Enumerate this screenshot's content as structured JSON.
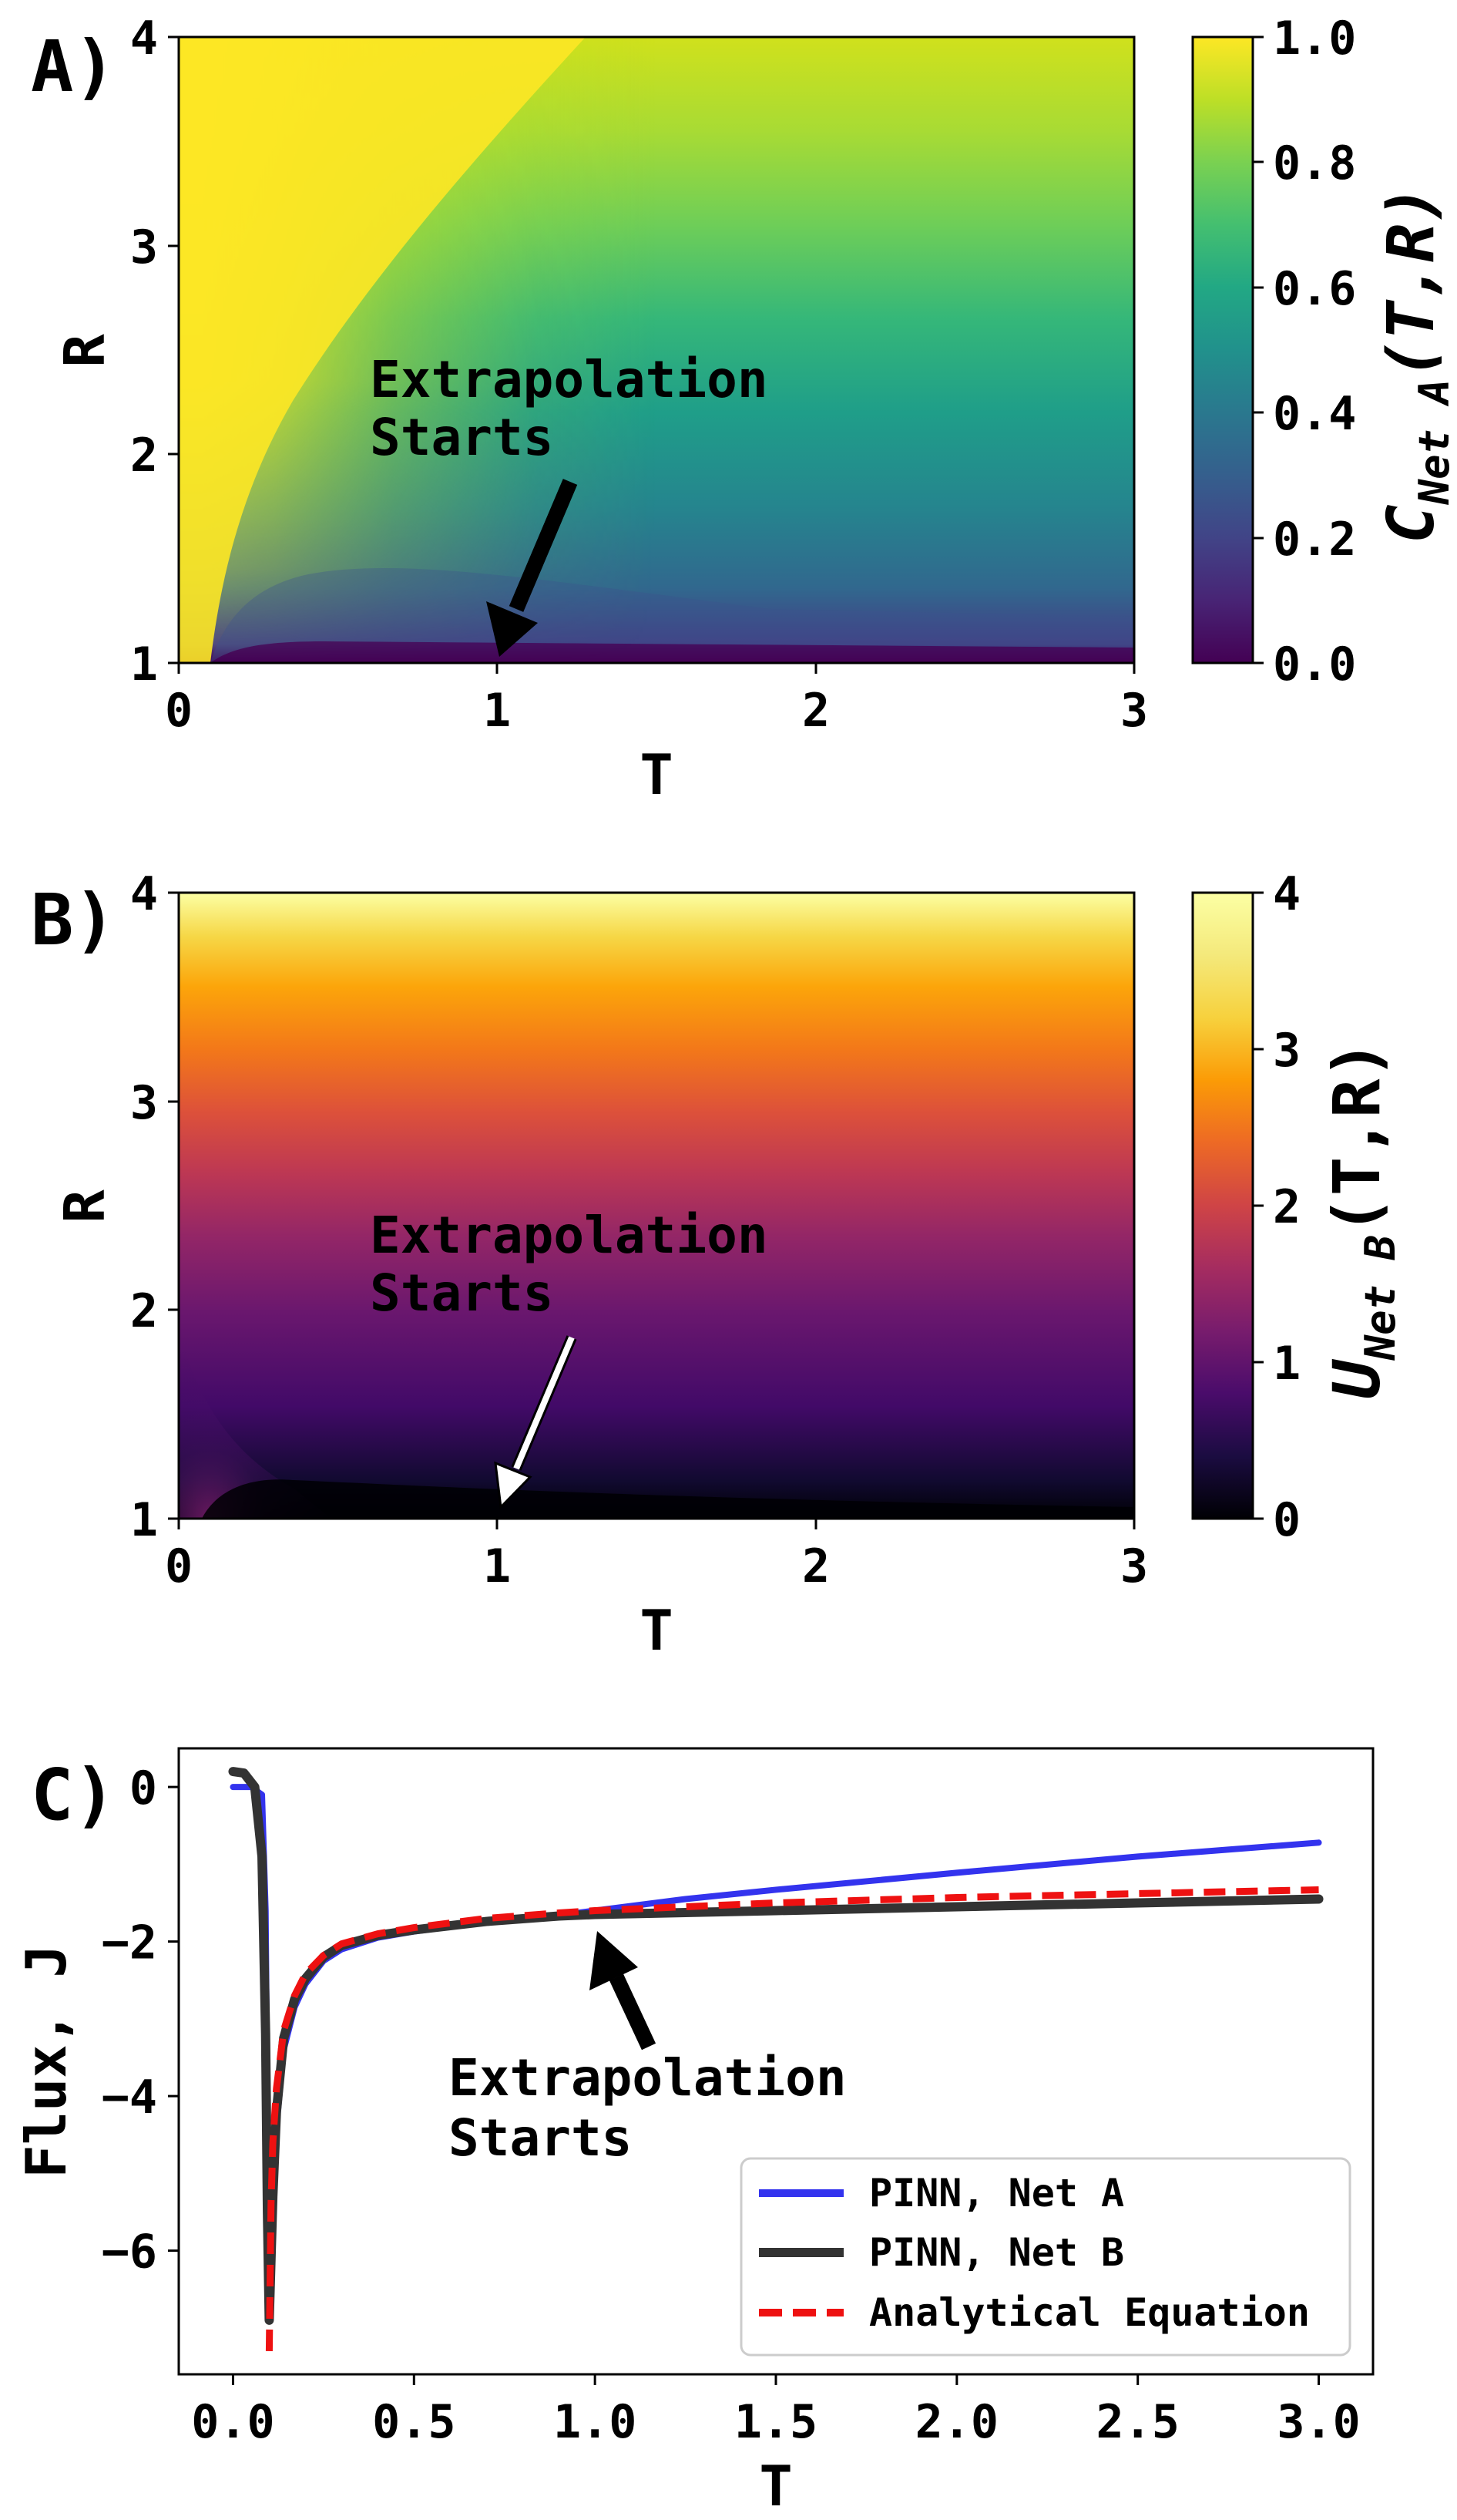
{
  "panels": {
    "a": {
      "label": "A)",
      "xlabel": "T",
      "ylabel": "R",
      "xticks": [
        "0",
        "1",
        "2",
        "3"
      ],
      "yticks": [
        "1",
        "2",
        "3",
        "4"
      ],
      "colorbar_label_main": "C",
      "colorbar_label_sub": "Net A",
      "colorbar_label_args": "(T,R)",
      "colorbar_ticks": [
        "0.0",
        "0.2",
        "0.4",
        "0.6",
        "0.8",
        "1.0"
      ],
      "colormap": "viridis",
      "annotation_line1": "Extrapolation",
      "annotation_line2": "Starts",
      "arrow_color": "#000000"
    },
    "b": {
      "label": "B)",
      "xlabel": "T",
      "ylabel": "R",
      "xticks": [
        "0",
        "1",
        "2",
        "3"
      ],
      "yticks": [
        "1",
        "2",
        "3",
        "4"
      ],
      "colorbar_label_main": "U",
      "colorbar_label_sub": "Net B",
      "colorbar_label_args": "(T,R)",
      "colorbar_ticks": [
        "0",
        "1",
        "2",
        "3",
        "4"
      ],
      "colormap": "inferno",
      "annotation_line1": "Extrapolation",
      "annotation_line2": "Starts",
      "arrow_color": "#ffffff"
    },
    "c": {
      "label": "C)",
      "xlabel": "T",
      "ylabel": "Flux, J",
      "xticks": [
        "0.0",
        "0.5",
        "1.0",
        "1.5",
        "2.0",
        "2.5",
        "3.0"
      ],
      "yticks": [
        "0",
        "−2",
        "−4",
        "−6"
      ],
      "annotation_line1": "Extrapolation",
      "annotation_line2": "Starts",
      "legend": [
        "PINN, Net A",
        "PINN, Net B",
        "Analytical Equation"
      ]
    }
  },
  "chart_data": [
    {
      "type": "heatmap",
      "title": "",
      "xlabel": "T",
      "ylabel": "R",
      "xlim": [
        0,
        3
      ],
      "ylim": [
        1,
        4
      ],
      "value_range": [
        0.0,
        1.0
      ],
      "colormap": "viridis",
      "colorbar_label": "C_Net A(T,R)",
      "annotation": {
        "text": "Extrapolation Starts",
        "x": 1.0,
        "y": 1.0
      }
    },
    {
      "type": "heatmap",
      "title": "",
      "xlabel": "T",
      "ylabel": "R",
      "xlim": [
        0,
        3
      ],
      "ylim": [
        1,
        4
      ],
      "value_range": [
        0,
        4
      ],
      "colormap": "inferno",
      "colorbar_label": "U_Net B(T,R)",
      "annotation": {
        "text": "Extrapolation Starts",
        "x": 1.0,
        "y": 1.0
      }
    },
    {
      "type": "line",
      "title": "",
      "xlabel": "T",
      "ylabel": "Flux, J",
      "xlim": [
        -0.15,
        3.15
      ],
      "ylim": [
        -7.6,
        0.5
      ],
      "annotation": {
        "text": "Extrapolation Starts",
        "x": 1.0,
        "y": -1.7
      },
      "series": [
        {
          "name": "PINN, Net A",
          "color": "#3333ee",
          "style": "solid",
          "x": [
            0,
            0.05,
            0.08,
            0.09,
            0.095,
            0.1,
            0.11,
            0.12,
            0.14,
            0.17,
            0.2,
            0.25,
            0.3,
            0.4,
            0.5,
            0.7,
            0.9,
            1.0,
            1.25,
            1.5,
            1.75,
            2.0,
            2.5,
            3.0
          ],
          "y": [
            0.0,
            0.0,
            -0.1,
            -1.6,
            -4.2,
            -6.6,
            -5.6,
            -4.4,
            -3.4,
            -2.85,
            -2.55,
            -2.25,
            -2.1,
            -1.95,
            -1.87,
            -1.75,
            -1.66,
            -1.6,
            -1.45,
            -1.33,
            -1.22,
            -1.11,
            -0.9,
            -0.72
          ]
        },
        {
          "name": "PINN, Net B",
          "color": "#333333",
          "style": "solid",
          "x": [
            0,
            0.03,
            0.06,
            0.08,
            0.09,
            0.095,
            0.1,
            0.11,
            0.12,
            0.14,
            0.17,
            0.2,
            0.25,
            0.3,
            0.4,
            0.5,
            0.7,
            0.9,
            1.0,
            1.5,
            2.0,
            2.5,
            3.0
          ],
          "y": [
            0.2,
            0.18,
            0.0,
            -0.9,
            -3.2,
            -5.5,
            -6.9,
            -5.3,
            -4.2,
            -3.25,
            -2.75,
            -2.48,
            -2.2,
            -2.05,
            -1.92,
            -1.85,
            -1.74,
            -1.67,
            -1.65,
            -1.6,
            -1.55,
            -1.5,
            -1.45
          ]
        },
        {
          "name": "Analytical Equation",
          "color": "#ee1111",
          "style": "dashed",
          "x": [
            0.1,
            0.105,
            0.11,
            0.12,
            0.14,
            0.17,
            0.2,
            0.25,
            0.3,
            0.4,
            0.5,
            0.7,
            0.9,
            1.0,
            1.5,
            2.0,
            2.5,
            3.0
          ],
          "y": [
            -7.3,
            -5.4,
            -4.6,
            -3.9,
            -3.15,
            -2.7,
            -2.42,
            -2.18,
            -2.03,
            -1.9,
            -1.82,
            -1.7,
            -1.63,
            -1.6,
            -1.5,
            -1.43,
            -1.38,
            -1.33
          ]
        }
      ]
    }
  ]
}
